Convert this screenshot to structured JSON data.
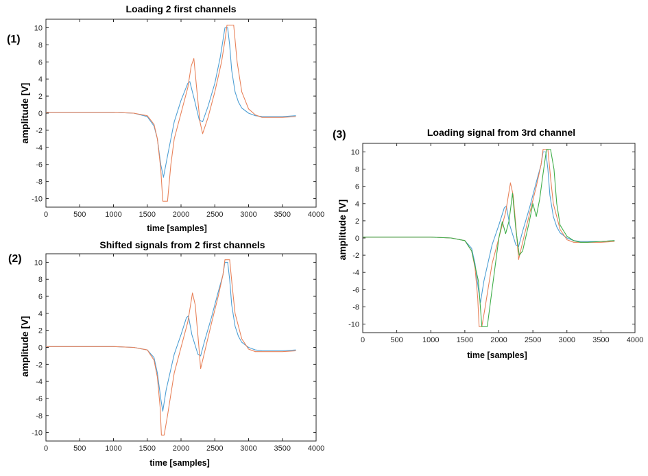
{
  "colors": {
    "series_1": "#4e9fd4",
    "series_2": "#e8825a",
    "series_3": "#3fae49"
  },
  "chart_data": [
    {
      "type": "line",
      "panel_label": "(1)",
      "title": "Loading 2 first channels",
      "xlabel": "time [samples]",
      "ylabel": "amplitude [V]",
      "xlim": [
        0,
        4000
      ],
      "ylim": [
        -11,
        11
      ],
      "xticks": [
        0,
        500,
        1000,
        1500,
        2000,
        2500,
        3000,
        3500,
        4000
      ],
      "yticks": [
        -10,
        -8,
        -6,
        -4,
        -2,
        0,
        2,
        4,
        6,
        8,
        10
      ],
      "grid": false,
      "series": [
        {
          "color": "#4e9fd4",
          "x": [
            0,
            500,
            1000,
            1300,
            1500,
            1600,
            1650,
            1700,
            1740,
            1800,
            1900,
            2000,
            2100,
            2130,
            2200,
            2270,
            2320,
            2400,
            2500,
            2580,
            2620,
            2650,
            2690,
            2720,
            2750,
            2800,
            2850,
            2900,
            3000,
            3100,
            3200,
            3300,
            3500,
            3700
          ],
          "y": [
            0.1,
            0.1,
            0.1,
            0.0,
            -0.4,
            -1.5,
            -3.0,
            -6.0,
            -7.5,
            -5.0,
            -1.0,
            1.5,
            3.5,
            3.7,
            1.5,
            -0.8,
            -1.0,
            0.8,
            3.5,
            6.5,
            8.5,
            10.0,
            10.0,
            8.0,
            5.0,
            2.5,
            1.3,
            0.6,
            0.0,
            -0.3,
            -0.4,
            -0.4,
            -0.4,
            -0.3
          ]
        },
        {
          "color": "#e8825a",
          "x": [
            0,
            500,
            1000,
            1300,
            1500,
            1600,
            1650,
            1700,
            1730,
            1760,
            1800,
            1850,
            1900,
            2000,
            2100,
            2150,
            2190,
            2230,
            2280,
            2320,
            2400,
            2500,
            2600,
            2650,
            2680,
            2750,
            2780,
            2830,
            2900,
            3000,
            3100,
            3200,
            3300,
            3500,
            3700
          ],
          "y": [
            0.1,
            0.1,
            0.1,
            0.0,
            -0.3,
            -1.3,
            -3.0,
            -6.5,
            -10.3,
            -10.3,
            -10.3,
            -6.0,
            -3.0,
            0.0,
            3.0,
            5.5,
            6.4,
            3.0,
            -1.0,
            -2.4,
            -0.5,
            2.5,
            6.0,
            8.5,
            10.3,
            10.3,
            10.3,
            6.0,
            2.5,
            0.5,
            -0.2,
            -0.5,
            -0.5,
            -0.5,
            -0.4
          ]
        }
      ]
    },
    {
      "type": "line",
      "panel_label": "(2)",
      "title": "Shifted signals from 2 first channels",
      "xlabel": "time [samples]",
      "ylabel": "amplitude [V]",
      "xlim": [
        0,
        4000
      ],
      "ylim": [
        -11,
        11
      ],
      "xticks": [
        0,
        500,
        1000,
        1500,
        2000,
        2500,
        3000,
        3500,
        4000
      ],
      "yticks": [
        -10,
        -8,
        -6,
        -4,
        -2,
        0,
        2,
        4,
        6,
        8,
        10
      ],
      "grid": false,
      "series": [
        {
          "color": "#4e9fd4",
          "x": [
            0,
            500,
            1000,
            1300,
            1500,
            1600,
            1650,
            1700,
            1730,
            1780,
            1900,
            2000,
            2080,
            2110,
            2160,
            2250,
            2290,
            2350,
            2450,
            2550,
            2620,
            2650,
            2690,
            2720,
            2750,
            2800,
            2850,
            2900,
            3000,
            3100,
            3200,
            3300,
            3500,
            3700
          ],
          "y": [
            0.1,
            0.1,
            0.1,
            0.0,
            -0.3,
            -1.2,
            -3.0,
            -6.0,
            -7.5,
            -5.0,
            -0.8,
            1.5,
            3.5,
            3.7,
            1.5,
            -0.8,
            -1.0,
            0.8,
            3.5,
            6.5,
            8.5,
            10.0,
            10.0,
            8.0,
            5.0,
            2.5,
            1.3,
            0.6,
            0.0,
            -0.3,
            -0.4,
            -0.4,
            -0.4,
            -0.3
          ]
        },
        {
          "color": "#e8825a",
          "x": [
            0,
            500,
            1000,
            1300,
            1500,
            1600,
            1650,
            1690,
            1710,
            1750,
            1800,
            1900,
            2000,
            2100,
            2170,
            2210,
            2260,
            2290,
            2350,
            2450,
            2550,
            2620,
            2650,
            2690,
            2720,
            2760,
            2800,
            2900,
            3000,
            3100,
            3200,
            3300,
            3500,
            3700
          ],
          "y": [
            0.1,
            0.1,
            0.1,
            0.0,
            -0.3,
            -1.5,
            -3.5,
            -7.0,
            -10.3,
            -10.3,
            -8.0,
            -3.0,
            0.0,
            3.0,
            6.4,
            5.0,
            0.5,
            -2.5,
            -0.5,
            2.8,
            6.0,
            8.5,
            10.3,
            10.3,
            10.3,
            7.0,
            4.0,
            1.0,
            -0.2,
            -0.5,
            -0.5,
            -0.5,
            -0.5,
            -0.4
          ]
        }
      ]
    },
    {
      "type": "line",
      "panel_label": "(3)",
      "title": "Loading signal from 3rd channel",
      "xlabel": "time [samples]",
      "ylabel": "amplitude [V]",
      "xlim": [
        0,
        4000
      ],
      "ylim": [
        -11,
        11
      ],
      "xticks": [
        0,
        500,
        1000,
        1500,
        2000,
        2500,
        3000,
        3500,
        4000
      ],
      "yticks": [
        -10,
        -8,
        -6,
        -4,
        -2,
        0,
        2,
        4,
        6,
        8,
        10
      ],
      "grid": false,
      "series": [
        {
          "color": "#4e9fd4",
          "x": [
            0,
            500,
            1000,
            1300,
            1500,
            1600,
            1650,
            1700,
            1730,
            1780,
            1900,
            2000,
            2080,
            2110,
            2160,
            2250,
            2290,
            2350,
            2450,
            2550,
            2620,
            2650,
            2690,
            2720,
            2750,
            2800,
            2850,
            2900,
            3000,
            3100,
            3200,
            3300,
            3500,
            3700
          ],
          "y": [
            0.1,
            0.1,
            0.1,
            0.0,
            -0.3,
            -1.2,
            -3.0,
            -6.0,
            -7.5,
            -5.0,
            -0.8,
            1.5,
            3.5,
            3.7,
            1.5,
            -0.8,
            -1.0,
            0.8,
            3.5,
            6.5,
            8.5,
            10.0,
            10.0,
            8.0,
            5.0,
            2.5,
            1.3,
            0.6,
            0.0,
            -0.3,
            -0.4,
            -0.4,
            -0.4,
            -0.3
          ]
        },
        {
          "color": "#e8825a",
          "x": [
            0,
            500,
            1000,
            1300,
            1500,
            1600,
            1650,
            1690,
            1710,
            1750,
            1800,
            1900,
            2000,
            2100,
            2170,
            2210,
            2260,
            2290,
            2350,
            2450,
            2550,
            2620,
            2650,
            2690,
            2720,
            2760,
            2800,
            2900,
            3000,
            3100,
            3200,
            3300,
            3500,
            3700
          ],
          "y": [
            0.1,
            0.1,
            0.1,
            0.0,
            -0.3,
            -1.5,
            -3.5,
            -7.0,
            -10.3,
            -10.3,
            -8.0,
            -3.0,
            0.0,
            3.0,
            6.4,
            5.0,
            0.5,
            -2.5,
            -0.5,
            2.8,
            6.0,
            8.5,
            10.3,
            10.3,
            10.3,
            7.0,
            4.0,
            1.0,
            -0.2,
            -0.5,
            -0.5,
            -0.5,
            -0.5,
            -0.4
          ]
        },
        {
          "color": "#3fae49",
          "x": [
            0,
            500,
            1000,
            1300,
            1500,
            1600,
            1700,
            1750,
            1790,
            1830,
            1900,
            2000,
            2050,
            2100,
            2150,
            2200,
            2250,
            2300,
            2350,
            2450,
            2500,
            2550,
            2600,
            2650,
            2700,
            2730,
            2760,
            2810,
            2850,
            2900,
            3000,
            3100,
            3200,
            3300,
            3500,
            3700
          ],
          "y": [
            0.1,
            0.1,
            0.1,
            0.0,
            -0.3,
            -1.5,
            -5.0,
            -10.3,
            -10.3,
            -10.3,
            -6.0,
            0.0,
            1.9,
            0.5,
            2.0,
            5.2,
            1.0,
            -2.0,
            -1.5,
            2.0,
            4.0,
            2.5,
            4.5,
            7.5,
            10.3,
            10.3,
            10.3,
            8.0,
            4.0,
            1.5,
            0.2,
            -0.3,
            -0.5,
            -0.5,
            -0.4,
            -0.3
          ]
        }
      ]
    }
  ]
}
